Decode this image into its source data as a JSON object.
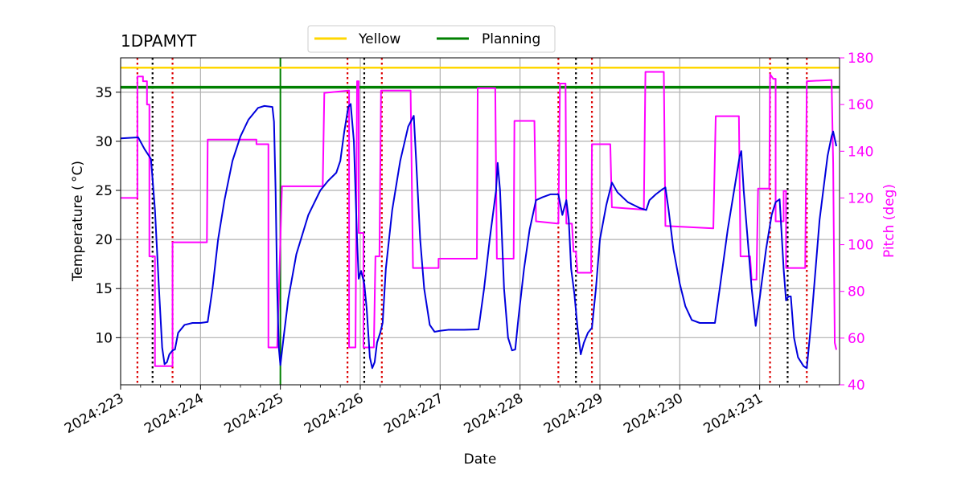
{
  "chart_data": {
    "type": "line",
    "title": "1DPAMYT",
    "xlabel": "Date",
    "ylabel_left": "Temperature ($^\\circ$C)",
    "ylabel_left_display": "Temperature ( °C)",
    "ylabel_right": "Pitch (deg)",
    "x_unit": "day of year 2024",
    "xlim": [
      223.0,
      232.0
    ],
    "ylim_left": [
      5.2,
      38.5
    ],
    "ylim_right": [
      40,
      180
    ],
    "x_ticks": [
      223,
      224,
      225,
      226,
      227,
      228,
      229,
      230,
      231
    ],
    "x_tick_labels": [
      "2024:223",
      "2024:224",
      "2024:225",
      "2024:226",
      "2024:227",
      "2024:228",
      "2024:229",
      "2024:230",
      "2024:231"
    ],
    "y_ticks_left": [
      10,
      15,
      20,
      25,
      30,
      35
    ],
    "y_tick_labels_left": [
      "10",
      "15",
      "20",
      "25",
      "30",
      "35"
    ],
    "y_ticks_right": [
      40,
      60,
      80,
      100,
      120,
      140,
      160,
      180
    ],
    "y_tick_labels_right": [
      "40",
      "60",
      "80",
      "100",
      "120",
      "140",
      "160",
      "180"
    ],
    "grid": true,
    "legend": {
      "placement": "top-center",
      "entries": [
        {
          "name": "Yellow",
          "color": "#ffd700"
        },
        {
          "name": "Planning",
          "color": "#008000"
        }
      ]
    },
    "limits": [
      {
        "name": "Yellow",
        "value": 37.5,
        "color": "#ffd700"
      },
      {
        "name": "Planning",
        "value": 35.5,
        "color": "#008000"
      }
    ],
    "now_line": {
      "x": 225.0,
      "color": "#008000"
    },
    "red_dotted_lines": [
      223.21,
      223.65,
      225.84,
      226.27,
      228.48,
      228.9,
      231.13,
      231.59
    ],
    "black_dotted_lines": [
      223.4,
      226.05,
      228.7,
      231.35
    ],
    "series": [
      {
        "axis": "left",
        "color": "#0000dd",
        "points": [
          [
            223.0,
            30.3
          ],
          [
            223.22,
            30.4
          ],
          [
            223.3,
            29.2
          ],
          [
            223.38,
            28.2
          ],
          [
            223.43,
            23
          ],
          [
            223.48,
            15
          ],
          [
            223.52,
            9
          ],
          [
            223.55,
            7.3
          ],
          [
            223.58,
            7.5
          ],
          [
            223.61,
            8.3
          ],
          [
            223.65,
            8.7
          ],
          [
            223.68,
            8.8
          ],
          [
            223.72,
            10.5
          ],
          [
            223.8,
            11.3
          ],
          [
            223.9,
            11.5
          ],
          [
            224.0,
            11.5
          ],
          [
            224.09,
            11.6
          ],
          [
            224.15,
            15
          ],
          [
            224.22,
            20
          ],
          [
            224.3,
            24
          ],
          [
            224.4,
            28
          ],
          [
            224.5,
            30.5
          ],
          [
            224.6,
            32.2
          ],
          [
            224.72,
            33.4
          ],
          [
            224.8,
            33.6
          ],
          [
            224.9,
            33.5
          ],
          [
            224.92,
            32
          ],
          [
            224.94,
            25
          ],
          [
            224.96,
            15
          ],
          [
            224.98,
            9
          ],
          [
            225.0,
            7.2
          ],
          [
            225.04,
            10
          ],
          [
            225.1,
            14
          ],
          [
            225.2,
            18.5
          ],
          [
            225.35,
            22.5
          ],
          [
            225.5,
            25
          ],
          [
            225.6,
            26
          ],
          [
            225.7,
            26.8
          ],
          [
            225.75,
            28
          ],
          [
            225.8,
            31
          ],
          [
            225.85,
            33.5
          ],
          [
            225.88,
            33.8
          ],
          [
            225.92,
            30
          ],
          [
            225.96,
            20
          ],
          [
            225.98,
            16
          ],
          [
            226.01,
            16.8
          ],
          [
            226.05,
            15.5
          ],
          [
            226.08,
            13
          ],
          [
            226.12,
            8
          ],
          [
            226.15,
            6.9
          ],
          [
            226.18,
            7.5
          ],
          [
            226.21,
            9.5
          ],
          [
            226.25,
            10.5
          ],
          [
            226.28,
            11.5
          ],
          [
            226.32,
            17
          ],
          [
            226.4,
            23
          ],
          [
            226.5,
            28
          ],
          [
            226.6,
            31.5
          ],
          [
            226.67,
            32.6
          ],
          [
            226.7,
            28
          ],
          [
            226.75,
            20
          ],
          [
            226.8,
            15
          ],
          [
            226.87,
            11.3
          ],
          [
            226.93,
            10.6
          ],
          [
            227.0,
            10.7
          ],
          [
            227.1,
            10.8
          ],
          [
            227.3,
            10.8
          ],
          [
            227.48,
            10.85
          ],
          [
            227.55,
            15
          ],
          [
            227.62,
            20
          ],
          [
            227.7,
            25
          ],
          [
            227.72,
            27.8
          ],
          [
            227.75,
            25
          ],
          [
            227.8,
            15
          ],
          [
            227.85,
            10
          ],
          [
            227.9,
            8.7
          ],
          [
            227.94,
            8.8
          ],
          [
            227.98,
            12
          ],
          [
            228.05,
            17
          ],
          [
            228.12,
            21
          ],
          [
            228.2,
            24
          ],
          [
            228.28,
            24.3
          ],
          [
            228.38,
            24.6
          ],
          [
            228.48,
            24.6
          ],
          [
            228.53,
            22.5
          ],
          [
            228.58,
            24
          ],
          [
            228.61,
            22
          ],
          [
            228.64,
            17
          ],
          [
            228.68,
            14.5
          ],
          [
            228.72,
            11
          ],
          [
            228.76,
            8.3
          ],
          [
            228.8,
            9.5
          ],
          [
            228.85,
            10.5
          ],
          [
            228.9,
            11
          ],
          [
            228.95,
            15
          ],
          [
            229.0,
            20
          ],
          [
            229.08,
            23.5
          ],
          [
            229.15,
            25.8
          ],
          [
            229.22,
            24.8
          ],
          [
            229.35,
            23.8
          ],
          [
            229.5,
            23.2
          ],
          [
            229.58,
            23.0
          ],
          [
            229.62,
            24
          ],
          [
            229.7,
            24.6
          ],
          [
            229.78,
            25.1
          ],
          [
            229.82,
            25.3
          ],
          [
            229.86,
            23
          ],
          [
            229.92,
            19
          ],
          [
            230.0,
            15.5
          ],
          [
            230.07,
            13.2
          ],
          [
            230.15,
            11.8
          ],
          [
            230.25,
            11.5
          ],
          [
            230.44,
            11.5
          ],
          [
            230.5,
            15
          ],
          [
            230.6,
            21
          ],
          [
            230.7,
            26
          ],
          [
            230.75,
            28.5
          ],
          [
            230.77,
            29.0
          ],
          [
            230.8,
            25
          ],
          [
            230.85,
            20
          ],
          [
            230.9,
            15
          ],
          [
            230.95,
            11.2
          ],
          [
            231.0,
            14
          ],
          [
            231.08,
            19
          ],
          [
            231.15,
            22.5
          ],
          [
            231.2,
            23.8
          ],
          [
            231.25,
            24.1
          ],
          [
            231.3,
            17
          ],
          [
            231.33,
            13.8
          ],
          [
            231.36,
            14.2
          ],
          [
            231.39,
            14.2
          ],
          [
            231.43,
            10
          ],
          [
            231.48,
            8
          ],
          [
            231.55,
            7.1
          ],
          [
            231.59,
            6.9
          ],
          [
            231.65,
            12
          ],
          [
            231.75,
            22
          ],
          [
            231.85,
            28.5
          ],
          [
            231.9,
            30.5
          ],
          [
            231.92,
            31.0
          ],
          [
            231.96,
            29.5
          ]
        ]
      },
      {
        "axis": "right",
        "color": "#ff00ff",
        "points": [
          [
            223.0,
            120
          ],
          [
            223.2,
            120
          ],
          [
            223.21,
            120
          ],
          [
            223.21,
            172
          ],
          [
            223.28,
            172
          ],
          [
            223.28,
            170
          ],
          [
            223.33,
            170
          ],
          [
            223.33,
            160
          ],
          [
            223.36,
            160
          ],
          [
            223.36,
            95
          ],
          [
            223.43,
            95
          ],
          [
            223.43,
            48
          ],
          [
            223.65,
            48
          ],
          [
            223.65,
            101
          ],
          [
            224.08,
            101
          ],
          [
            224.09,
            145
          ],
          [
            224.7,
            145
          ],
          [
            224.7,
            143
          ],
          [
            224.85,
            143
          ],
          [
            224.85,
            56
          ],
          [
            224.96,
            56
          ],
          [
            225.02,
            125
          ],
          [
            225.53,
            125
          ],
          [
            225.55,
            165
          ],
          [
            225.86,
            166
          ],
          [
            225.86,
            56
          ],
          [
            225.94,
            56
          ],
          [
            225.96,
            170
          ],
          [
            225.98,
            170
          ],
          [
            225.98,
            105
          ],
          [
            226.04,
            105
          ],
          [
            226.04,
            56
          ],
          [
            226.17,
            56
          ],
          [
            226.19,
            95
          ],
          [
            226.24,
            95
          ],
          [
            226.26,
            166
          ],
          [
            226.63,
            166
          ],
          [
            226.66,
            90
          ],
          [
            226.98,
            90
          ],
          [
            226.98,
            94
          ],
          [
            227.46,
            94
          ],
          [
            227.47,
            167
          ],
          [
            227.69,
            167
          ],
          [
            227.71,
            94
          ],
          [
            227.92,
            94
          ],
          [
            227.93,
            153
          ],
          [
            228.18,
            153
          ],
          [
            228.2,
            110
          ],
          [
            228.48,
            109
          ],
          [
            228.5,
            169
          ],
          [
            228.57,
            169
          ],
          [
            228.58,
            109
          ],
          [
            228.65,
            109
          ],
          [
            228.67,
            97
          ],
          [
            228.7,
            97
          ],
          [
            228.72,
            88
          ],
          [
            228.89,
            88
          ],
          [
            228.9,
            143
          ],
          [
            229.13,
            143
          ],
          [
            229.15,
            116
          ],
          [
            229.55,
            115
          ],
          [
            229.57,
            174
          ],
          [
            229.8,
            174
          ],
          [
            229.82,
            108
          ],
          [
            230.42,
            107
          ],
          [
            230.45,
            155
          ],
          [
            230.74,
            155
          ],
          [
            230.76,
            95
          ],
          [
            230.88,
            95
          ],
          [
            230.9,
            85
          ],
          [
            230.96,
            85
          ],
          [
            230.98,
            124
          ],
          [
            231.12,
            124
          ],
          [
            231.13,
            173
          ],
          [
            231.17,
            171
          ],
          [
            231.2,
            171
          ],
          [
            231.2,
            110
          ],
          [
            231.3,
            110
          ],
          [
            231.3,
            123
          ],
          [
            231.33,
            123
          ],
          [
            231.33,
            90
          ],
          [
            231.57,
            90
          ],
          [
            231.59,
            170
          ],
          [
            231.9,
            170.5
          ],
          [
            231.92,
            135
          ],
          [
            231.94,
            58
          ],
          [
            231.96,
            55
          ]
        ]
      }
    ]
  }
}
